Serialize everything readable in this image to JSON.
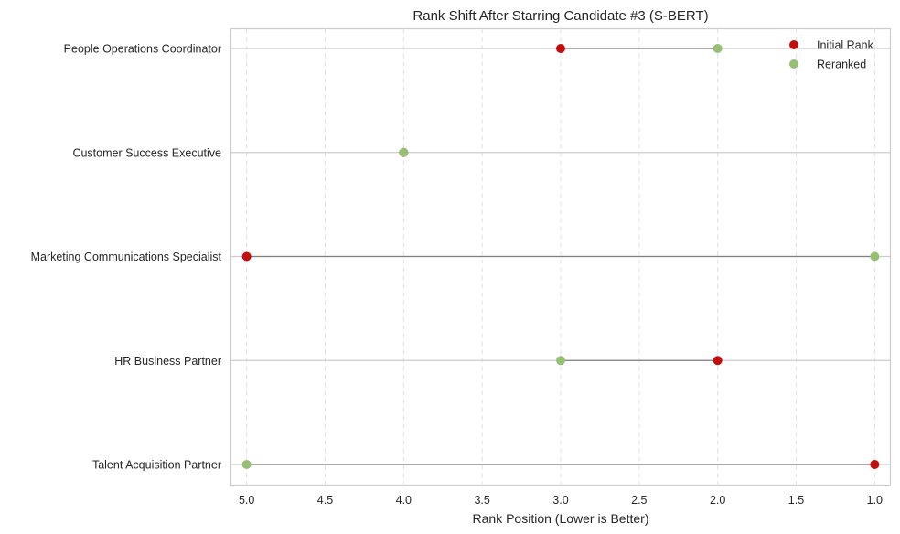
{
  "chart_data": {
    "type": "scatter",
    "title": "Rank Shift After Starring Candidate #3 (S-BERT)",
    "xlabel": "Rank Position (Lower is Better)",
    "ylabel": "",
    "xlim": [
      5.1,
      0.9
    ],
    "x_inverted": true,
    "x_ticks": [
      5.0,
      4.5,
      4.0,
      3.5,
      3.0,
      2.5,
      2.0,
      1.5,
      1.0
    ],
    "x_tick_labels": [
      "5.0",
      "4.5",
      "4.0",
      "3.5",
      "3.0",
      "2.5",
      "2.0",
      "1.5",
      "1.0"
    ],
    "categories": [
      "People Operations Coordinator",
      "Customer Success Executive",
      "Marketing Communications Specialist",
      "HR Business Partner",
      "Talent Acquisition Partner"
    ],
    "series": [
      {
        "name": "Initial Rank",
        "color": "#c40e0e",
        "values": [
          3,
          4,
          5,
          2,
          1
        ]
      },
      {
        "name": "Reranked",
        "color": "#97bf73",
        "values": [
          2,
          4,
          1,
          3,
          5
        ]
      }
    ],
    "connector_color": "#808080",
    "grid": true,
    "legend_position": "top-right"
  }
}
